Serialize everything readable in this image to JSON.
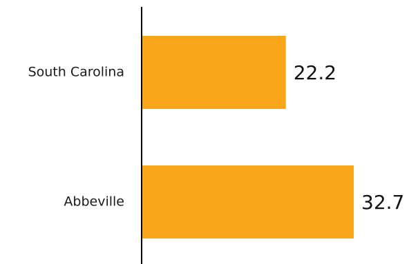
{
  "chart_data": {
    "type": "bar",
    "orientation": "horizontal",
    "categories": [
      "South Carolina",
      "Abbeville"
    ],
    "values": [
      22.2,
      32.7
    ],
    "value_labels": [
      "22.2",
      "32.7"
    ],
    "bar_color": "#FAA61A",
    "axis_color": "#000000",
    "grid": false,
    "legend": "none"
  }
}
